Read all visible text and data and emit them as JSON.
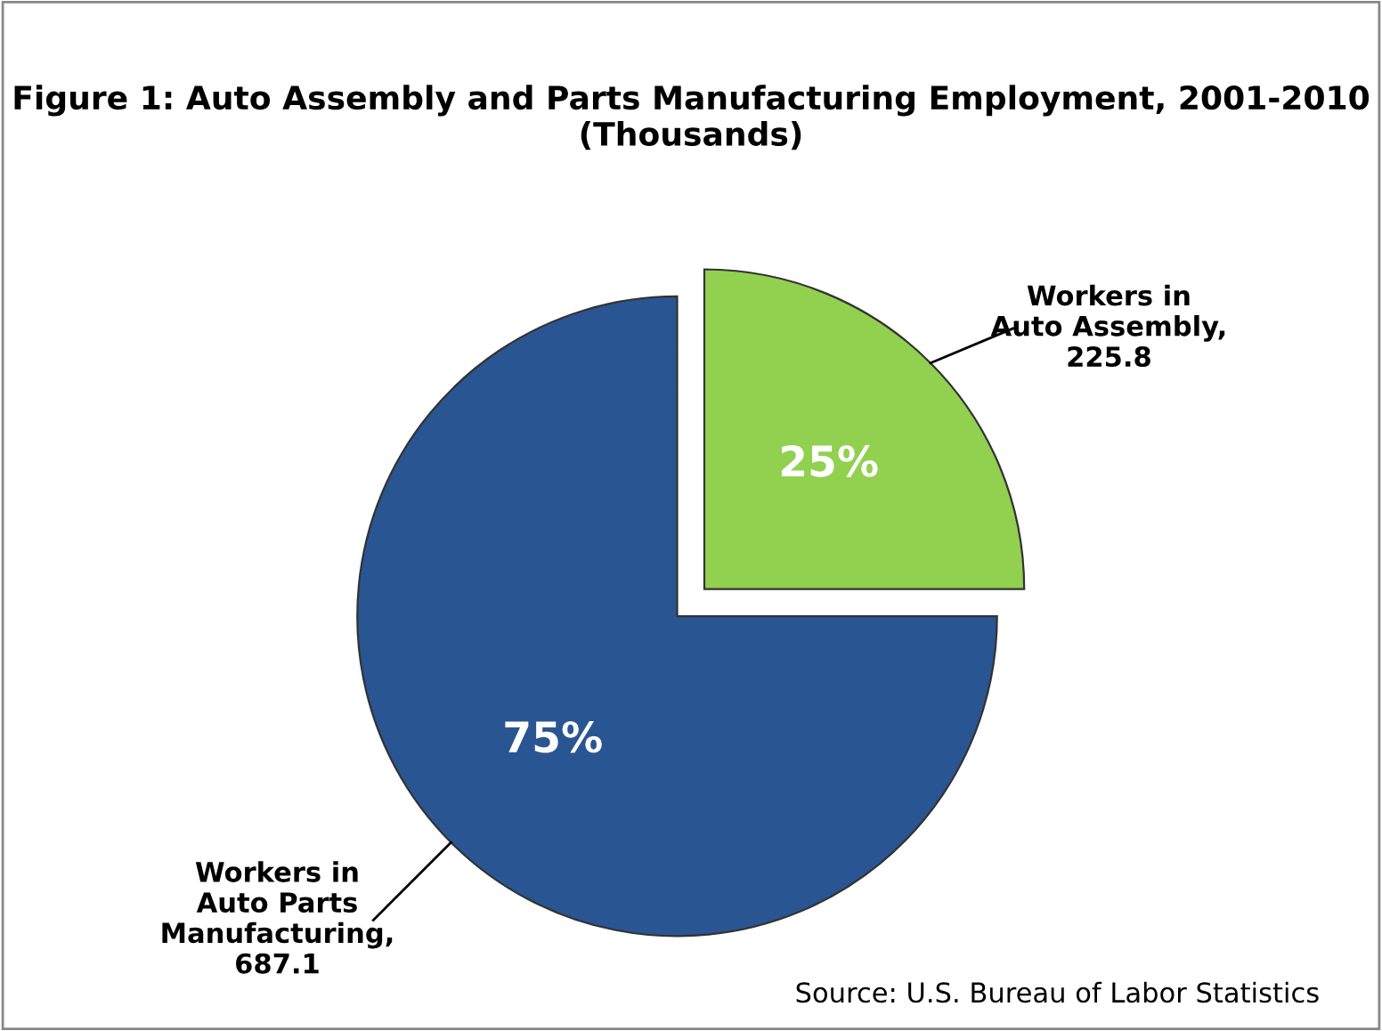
{
  "chart_data": {
    "type": "pie",
    "title": "Figure 1: Auto Assembly and Parts Manufacturing Employment, 2001-2010 (Thousands)",
    "categories": [
      "Workers in Auto Assembly, 225.8",
      "Workers in Auto Parts Manufacturing, 687.1"
    ],
    "values": [
      25,
      75
    ],
    "colors": [
      "#92d050",
      "#2a5593"
    ],
    "value_labels": [
      "25%",
      "75%"
    ],
    "legend": false,
    "annotations": [
      "Source: U.S. Bureau of Labor Statistics"
    ]
  }
}
